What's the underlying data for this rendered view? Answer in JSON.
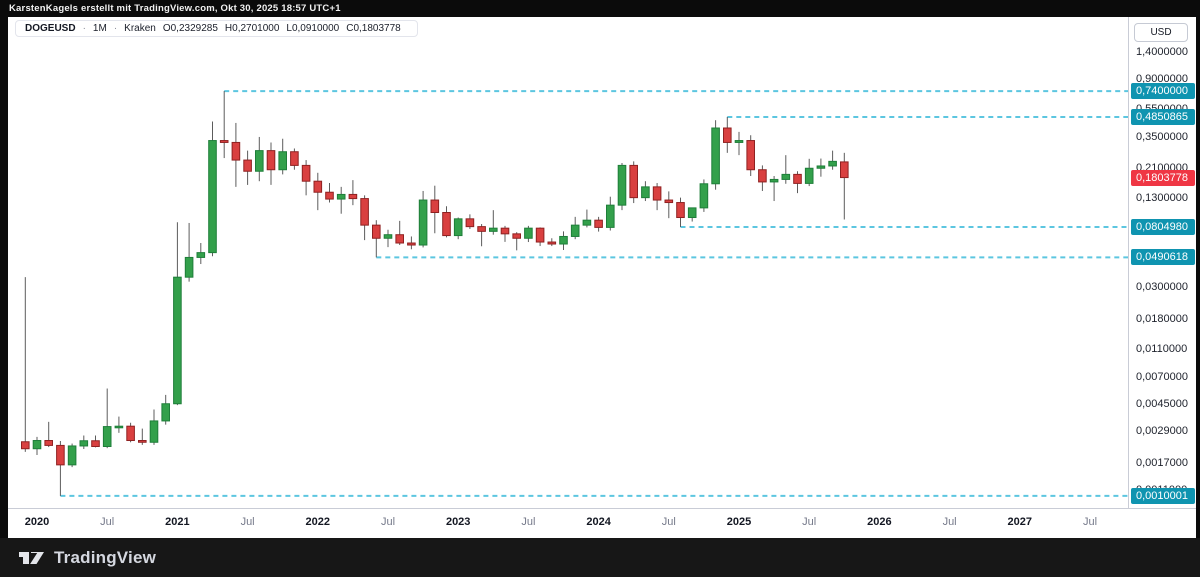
{
  "header": {
    "attribution": "KarstenKagels erstellt mit TradingView.com, Okt 30, 2025 18:57 UTC+1"
  },
  "legend": {
    "symbol": "DOGEUSD",
    "separator": "·",
    "interval": "1M",
    "exchange": "Kraken",
    "ohlc": [
      {
        "k": "O",
        "v": "0,2329285"
      },
      {
        "k": "H",
        "v": "0,2701000"
      },
      {
        "k": "L",
        "v": "0,0910000"
      },
      {
        "k": "C",
        "v": "0,1803778"
      }
    ]
  },
  "price_axis": {
    "currency_button": "USD",
    "ticks": [
      {
        "price": 1.4,
        "label": "1,4000000"
      },
      {
        "price": 0.9,
        "label": "0,9000000"
      },
      {
        "price": 0.55,
        "label": "0,5500000"
      },
      {
        "price": 0.35,
        "label": "0,3500000"
      },
      {
        "price": 0.21,
        "label": "0,2100000"
      },
      {
        "price": 0.13,
        "label": "0,1300000"
      },
      {
        "price": 0.03,
        "label": "0,0300000"
      },
      {
        "price": 0.018,
        "label": "0,0180000"
      },
      {
        "price": 0.011,
        "label": "0,0110000"
      },
      {
        "price": 0.007,
        "label": "0,0070000"
      },
      {
        "price": 0.0045,
        "label": "0,0045000"
      },
      {
        "price": 0.0029,
        "label": "0,0029000"
      },
      {
        "price": 0.0017,
        "label": "0,0017000"
      },
      {
        "price": 0.0011,
        "label": "0,0011000"
      }
    ],
    "last_price_badge": {
      "price": 0.1803778,
      "label": "0,1803778",
      "color": "#ef3644"
    }
  },
  "time_axis": {
    "labels": [
      {
        "text": "2020",
        "month_index": 1,
        "major": true
      },
      {
        "text": "Jul",
        "month_index": 7,
        "major": false
      },
      {
        "text": "2021",
        "month_index": 13,
        "major": true
      },
      {
        "text": "Jul",
        "month_index": 19,
        "major": false
      },
      {
        "text": "2022",
        "month_index": 25,
        "major": true
      },
      {
        "text": "Jul",
        "month_index": 31,
        "major": false
      },
      {
        "text": "2023",
        "month_index": 37,
        "major": true
      },
      {
        "text": "Jul",
        "month_index": 43,
        "major": false
      },
      {
        "text": "2024",
        "month_index": 49,
        "major": true
      },
      {
        "text": "Jul",
        "month_index": 55,
        "major": false
      },
      {
        "text": "2025",
        "month_index": 61,
        "major": true
      },
      {
        "text": "Jul",
        "month_index": 67,
        "major": false
      },
      {
        "text": "2026",
        "month_index": 73,
        "major": true
      },
      {
        "text": "Jul",
        "month_index": 79,
        "major": false
      },
      {
        "text": "2027",
        "month_index": 85,
        "major": true
      },
      {
        "text": "Jul",
        "month_index": 91,
        "major": false
      }
    ]
  },
  "footer": {
    "brand": "TradingView"
  },
  "chart_data": {
    "type": "candlestick",
    "title": "DOGEUSD monthly candles, Kraken",
    "symbol": "DOGEUSD",
    "exchange": "Kraken",
    "interval": "1M",
    "currency": "USD",
    "y_scale": "log",
    "grid": false,
    "candle_format": [
      "month",
      "open",
      "high",
      "low",
      "close"
    ],
    "candles": [
      [
        "2019-12",
        0.00242,
        0.0355,
        0.00205,
        0.00216
      ],
      [
        "2020-01",
        0.00216,
        0.00262,
        0.00195,
        0.00247
      ],
      [
        "2020-02",
        0.00247,
        0.00335,
        0.00222,
        0.00228
      ],
      [
        "2020-03",
        0.00228,
        0.00245,
        0.001,
        0.00166
      ],
      [
        "2020-04",
        0.00166,
        0.00235,
        0.0016,
        0.00226
      ],
      [
        "2020-05",
        0.00226,
        0.00268,
        0.00215,
        0.00246
      ],
      [
        "2020-06",
        0.00246,
        0.00268,
        0.00221,
        0.00224
      ],
      [
        "2020-07",
        0.00224,
        0.00577,
        0.00218,
        0.0031
      ],
      [
        "2020-08",
        0.0031,
        0.00365,
        0.0028,
        0.00312
      ],
      [
        "2020-09",
        0.00312,
        0.0033,
        0.0024,
        0.00247
      ],
      [
        "2020-10",
        0.00247,
        0.003,
        0.0023,
        0.0024
      ],
      [
        "2020-11",
        0.0024,
        0.0041,
        0.0023,
        0.0034
      ],
      [
        "2020-12",
        0.0034,
        0.0052,
        0.0032,
        0.0045
      ],
      [
        "2021-01",
        0.0045,
        0.087,
        0.0044,
        0.0355
      ],
      [
        "2021-02",
        0.0355,
        0.086,
        0.033,
        0.049
      ],
      [
        "2021-03",
        0.049,
        0.062,
        0.044,
        0.053
      ],
      [
        "2021-04",
        0.053,
        0.45,
        0.05,
        0.33
      ],
      [
        "2021-05",
        0.33,
        0.74,
        0.248,
        0.32
      ],
      [
        "2021-06",
        0.32,
        0.44,
        0.155,
        0.24
      ],
      [
        "2021-07",
        0.24,
        0.28,
        0.16,
        0.2
      ],
      [
        "2021-08",
        0.2,
        0.35,
        0.17,
        0.28
      ],
      [
        "2021-09",
        0.28,
        0.32,
        0.16,
        0.205
      ],
      [
        "2021-10",
        0.205,
        0.34,
        0.19,
        0.275
      ],
      [
        "2021-11",
        0.275,
        0.29,
        0.205,
        0.22
      ],
      [
        "2021-12",
        0.22,
        0.24,
        0.135,
        0.17
      ],
      [
        "2022-01",
        0.17,
        0.195,
        0.106,
        0.142
      ],
      [
        "2022-02",
        0.142,
        0.165,
        0.12,
        0.127
      ],
      [
        "2022-03",
        0.127,
        0.155,
        0.1,
        0.137
      ],
      [
        "2022-04",
        0.137,
        0.173,
        0.115,
        0.128
      ],
      [
        "2022-05",
        0.128,
        0.135,
        0.065,
        0.083
      ],
      [
        "2022-06",
        0.083,
        0.09,
        0.0490618,
        0.067
      ],
      [
        "2022-07",
        0.067,
        0.077,
        0.058,
        0.071
      ],
      [
        "2022-08",
        0.071,
        0.089,
        0.06,
        0.062
      ],
      [
        "2022-09",
        0.062,
        0.069,
        0.056,
        0.06
      ],
      [
        "2022-10",
        0.06,
        0.145,
        0.0577,
        0.125
      ],
      [
        "2022-11",
        0.125,
        0.158,
        0.0727,
        0.102
      ],
      [
        "2022-12",
        0.102,
        0.113,
        0.068,
        0.07
      ],
      [
        "2023-01",
        0.07,
        0.094,
        0.066,
        0.092
      ],
      [
        "2023-02",
        0.092,
        0.099,
        0.078,
        0.081
      ],
      [
        "2023-03",
        0.081,
        0.0845,
        0.0588,
        0.075
      ],
      [
        "2023-04",
        0.075,
        0.106,
        0.071,
        0.079
      ],
      [
        "2023-05",
        0.079,
        0.082,
        0.0632,
        0.072
      ],
      [
        "2023-06",
        0.072,
        0.074,
        0.055,
        0.067
      ],
      [
        "2023-07",
        0.067,
        0.082,
        0.063,
        0.079
      ],
      [
        "2023-08",
        0.079,
        0.08,
        0.059,
        0.063
      ],
      [
        "2023-09",
        0.063,
        0.067,
        0.059,
        0.061
      ],
      [
        "2023-10",
        0.061,
        0.075,
        0.0553,
        0.069
      ],
      [
        "2023-11",
        0.069,
        0.095,
        0.066,
        0.083
      ],
      [
        "2023-12",
        0.083,
        0.107,
        0.08,
        0.09
      ],
      [
        "2024-01",
        0.09,
        0.095,
        0.0747,
        0.08
      ],
      [
        "2024-02",
        0.08,
        0.132,
        0.076,
        0.115
      ],
      [
        "2024-03",
        0.115,
        0.229,
        0.106,
        0.22
      ],
      [
        "2024-04",
        0.22,
        0.235,
        0.119,
        0.13
      ],
      [
        "2024-05",
        0.13,
        0.17,
        0.123,
        0.155
      ],
      [
        "2024-06",
        0.155,
        0.165,
        0.106,
        0.125
      ],
      [
        "2024-07",
        0.125,
        0.144,
        0.093,
        0.12
      ],
      [
        "2024-08",
        0.12,
        0.13,
        0.080498,
        0.094
      ],
      [
        "2024-09",
        0.094,
        0.11,
        0.088,
        0.11
      ],
      [
        "2024-10",
        0.11,
        0.175,
        0.103,
        0.163
      ],
      [
        "2024-11",
        0.163,
        0.46,
        0.148,
        0.405
      ],
      [
        "2024-12",
        0.405,
        0.4850865,
        0.27,
        0.32
      ],
      [
        "2025-01",
        0.32,
        0.38,
        0.26,
        0.33
      ],
      [
        "2025-02",
        0.33,
        0.36,
        0.185,
        0.205
      ],
      [
        "2025-03",
        0.205,
        0.22,
        0.145,
        0.168
      ],
      [
        "2025-04",
        0.168,
        0.185,
        0.123,
        0.175
      ],
      [
        "2025-05",
        0.175,
        0.26,
        0.163,
        0.19
      ],
      [
        "2025-06",
        0.19,
        0.2,
        0.14,
        0.164
      ],
      [
        "2025-07",
        0.164,
        0.245,
        0.157,
        0.21
      ],
      [
        "2025-08",
        0.21,
        0.246,
        0.183,
        0.218
      ],
      [
        "2025-09",
        0.218,
        0.28,
        0.205,
        0.235
      ],
      [
        "2025-10",
        0.2329285,
        0.2701,
        0.091,
        0.1803778
      ]
    ],
    "horizontal_levels": [
      {
        "price": 0.74,
        "label": "0,7400000",
        "start_month_index": 17
      },
      {
        "price": 0.4850865,
        "label": "0,4850865",
        "start_month_index": 60
      },
      {
        "price": 0.080498,
        "label": "0,0804980",
        "start_month_index": 56
      },
      {
        "price": 0.0490618,
        "label": "0,0490618",
        "start_month_index": 30
      },
      {
        "price": 0.0010001,
        "label": "0,0010001",
        "start_month_index": 3
      }
    ],
    "colors": {
      "up_fill": "#33a04b",
      "up_border": "#1e7e39",
      "down_fill": "#d94040",
      "down_border": "#8f2121",
      "wick": "#5c5c5c",
      "level_line": "#5cc6e0",
      "level_badge": "#0f94b0",
      "last_price": "#ef3644"
    }
  }
}
